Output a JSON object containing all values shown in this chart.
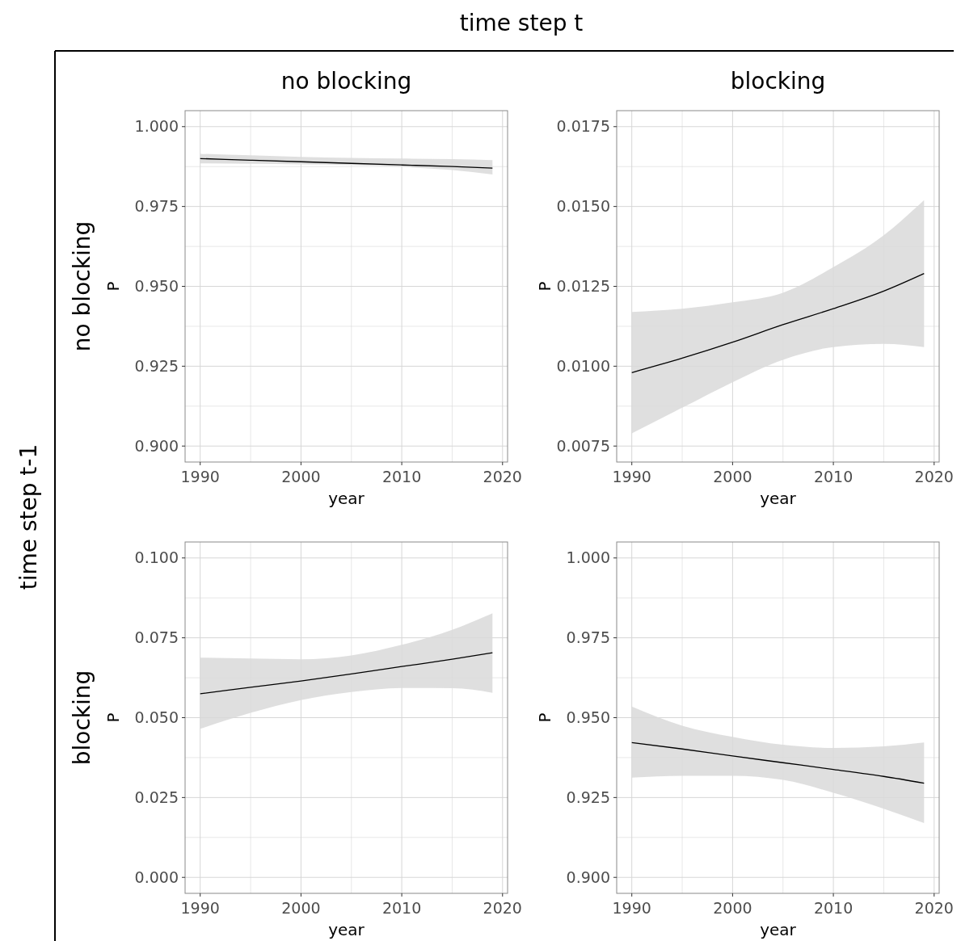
{
  "chart_data": [
    {
      "type": "line",
      "title": "no blocking",
      "subtitle": "no blocking",
      "xlabel": "year",
      "ylabel": "P",
      "annotations": [
        "time step t",
        "time step t-1"
      ],
      "xlim": [
        1988.5,
        2020.5
      ],
      "xticks": [
        1990,
        {
          "value": 1995,
          "label": null
        },
        2000,
        {
          "value": 2005,
          "label": null
        },
        2010,
        {
          "value": 2015,
          "label": null
        },
        2020
      ],
      "ylim": [
        0.895,
        1.005
      ],
      "yticks": [
        {
          "value": 0.9,
          "label": "0.900"
        },
        {
          "value": 0.9125,
          "label": null
        },
        {
          "value": 0.925,
          "label": "0.925"
        },
        {
          "value": 0.9375,
          "label": null
        },
        {
          "value": 0.95,
          "label": "0.950"
        },
        {
          "value": 0.9625,
          "label": null
        },
        {
          "value": 0.975,
          "label": "0.975"
        },
        {
          "value": 0.9875,
          "label": null
        },
        {
          "value": 1.0,
          "label": "1.000"
        }
      ],
      "grid": true,
      "series": [
        {
          "color": "#000000",
          "x": [
            1990,
            1995,
            2000,
            2005,
            2010,
            2015,
            2019
          ],
          "values": [
            0.99,
            0.9895,
            0.989,
            0.9885,
            0.988,
            0.9875,
            0.987
          ],
          "lower": [
            0.9885,
            0.9884,
            0.9882,
            0.988,
            0.9874,
            0.9864,
            0.985
          ],
          "upper": [
            0.9915,
            0.991,
            0.9905,
            0.9902,
            0.99,
            0.9898,
            0.9895
          ]
        }
      ]
    },
    {
      "type": "line",
      "title": "blocking",
      "xlabel": "year",
      "ylabel": "P",
      "xlim": [
        1988.5,
        2020.5
      ],
      "xticks": [
        1990,
        {
          "value": 1995,
          "label": null
        },
        2000,
        {
          "value": 2005,
          "label": null
        },
        2010,
        {
          "value": 2015,
          "label": null
        },
        2020
      ],
      "ylim": [
        0.007,
        0.018
      ],
      "yticks": [
        {
          "value": 0.0075,
          "label": "0.0075"
        },
        {
          "value": 0.00875,
          "label": null
        },
        {
          "value": 0.01,
          "label": "0.0100"
        },
        {
          "value": 0.01125,
          "label": null
        },
        {
          "value": 0.0125,
          "label": "0.0125"
        },
        {
          "value": 0.01375,
          "label": null
        },
        {
          "value": 0.015,
          "label": "0.0150"
        },
        {
          "value": 0.01625,
          "label": null
        },
        {
          "value": 0.0175,
          "label": "0.0175"
        }
      ],
      "grid": true,
      "series": [
        {
          "color": "#000000",
          "x": [
            1990,
            1995,
            2000,
            2005,
            2010,
            2015,
            2019
          ],
          "values": [
            0.0098,
            0.01025,
            0.01075,
            0.0113,
            0.0118,
            0.01235,
            0.0129
          ],
          "lower": [
            0.0079,
            0.0087,
            0.0095,
            0.0102,
            0.0106,
            0.0107,
            0.0106
          ],
          "upper": [
            0.0117,
            0.0118,
            0.012,
            0.0123,
            0.0131,
            0.0141,
            0.0152
          ]
        }
      ]
    },
    {
      "type": "line",
      "subtitle": "blocking",
      "xlabel": "year",
      "ylabel": "P",
      "xlim": [
        1988.5,
        2020.5
      ],
      "xticks": [
        1990,
        {
          "value": 1995,
          "label": null
        },
        2000,
        {
          "value": 2005,
          "label": null
        },
        2010,
        {
          "value": 2015,
          "label": null
        },
        2020
      ],
      "ylim": [
        -0.005,
        0.105
      ],
      "yticks": [
        {
          "value": 0,
          "label": "0.000"
        },
        {
          "value": 0.0125,
          "label": null
        },
        {
          "value": 0.025,
          "label": "0.025"
        },
        {
          "value": 0.0375,
          "label": null
        },
        {
          "value": 0.05,
          "label": "0.050"
        },
        {
          "value": 0.0625,
          "label": null
        },
        {
          "value": 0.075,
          "label": "0.075"
        },
        {
          "value": 0.0875,
          "label": null
        },
        {
          "value": 0.1,
          "label": "0.100"
        }
      ],
      "grid": true,
      "series": [
        {
          "color": "#000000",
          "x": [
            1990,
            1995,
            2000,
            2005,
            2010,
            2015,
            2019
          ],
          "values": [
            0.0575,
            0.0595,
            0.0615,
            0.0637,
            0.066,
            0.0683,
            0.0703
          ],
          "lower": [
            0.0465,
            0.0515,
            0.0555,
            0.058,
            0.0593,
            0.0592,
            0.0578
          ],
          "upper": [
            0.0688,
            0.0685,
            0.0683,
            0.0695,
            0.0728,
            0.0775,
            0.0827
          ]
        }
      ]
    },
    {
      "type": "line",
      "xlabel": "year",
      "ylabel": "P",
      "xlim": [
        1988.5,
        2020.5
      ],
      "xticks": [
        1990,
        {
          "value": 1995,
          "label": null
        },
        2000,
        {
          "value": 2005,
          "label": null
        },
        2010,
        {
          "value": 2015,
          "label": null
        },
        2020
      ],
      "ylim": [
        0.895,
        1.005
      ],
      "yticks": [
        {
          "value": 0.9,
          "label": "0.900"
        },
        {
          "value": 0.9125,
          "label": null
        },
        {
          "value": 0.925,
          "label": "0.925"
        },
        {
          "value": 0.9375,
          "label": null
        },
        {
          "value": 0.95,
          "label": "0.950"
        },
        {
          "value": 0.9625,
          "label": null
        },
        {
          "value": 0.975,
          "label": "0.975"
        },
        {
          "value": 0.9875,
          "label": null
        },
        {
          "value": 1.0,
          "label": "1.000"
        }
      ],
      "grid": true,
      "series": [
        {
          "color": "#000000",
          "x": [
            1990,
            1995,
            2000,
            2005,
            2010,
            2015,
            2019
          ],
          "values": [
            0.9422,
            0.9402,
            0.938,
            0.9359,
            0.9338,
            0.9316,
            0.9295
          ],
          "lower": [
            0.9312,
            0.9318,
            0.9318,
            0.9305,
            0.9265,
            0.9215,
            0.917
          ],
          "upper": [
            0.9535,
            0.9475,
            0.944,
            0.9415,
            0.9405,
            0.941,
            0.9422
          ]
        }
      ]
    }
  ]
}
